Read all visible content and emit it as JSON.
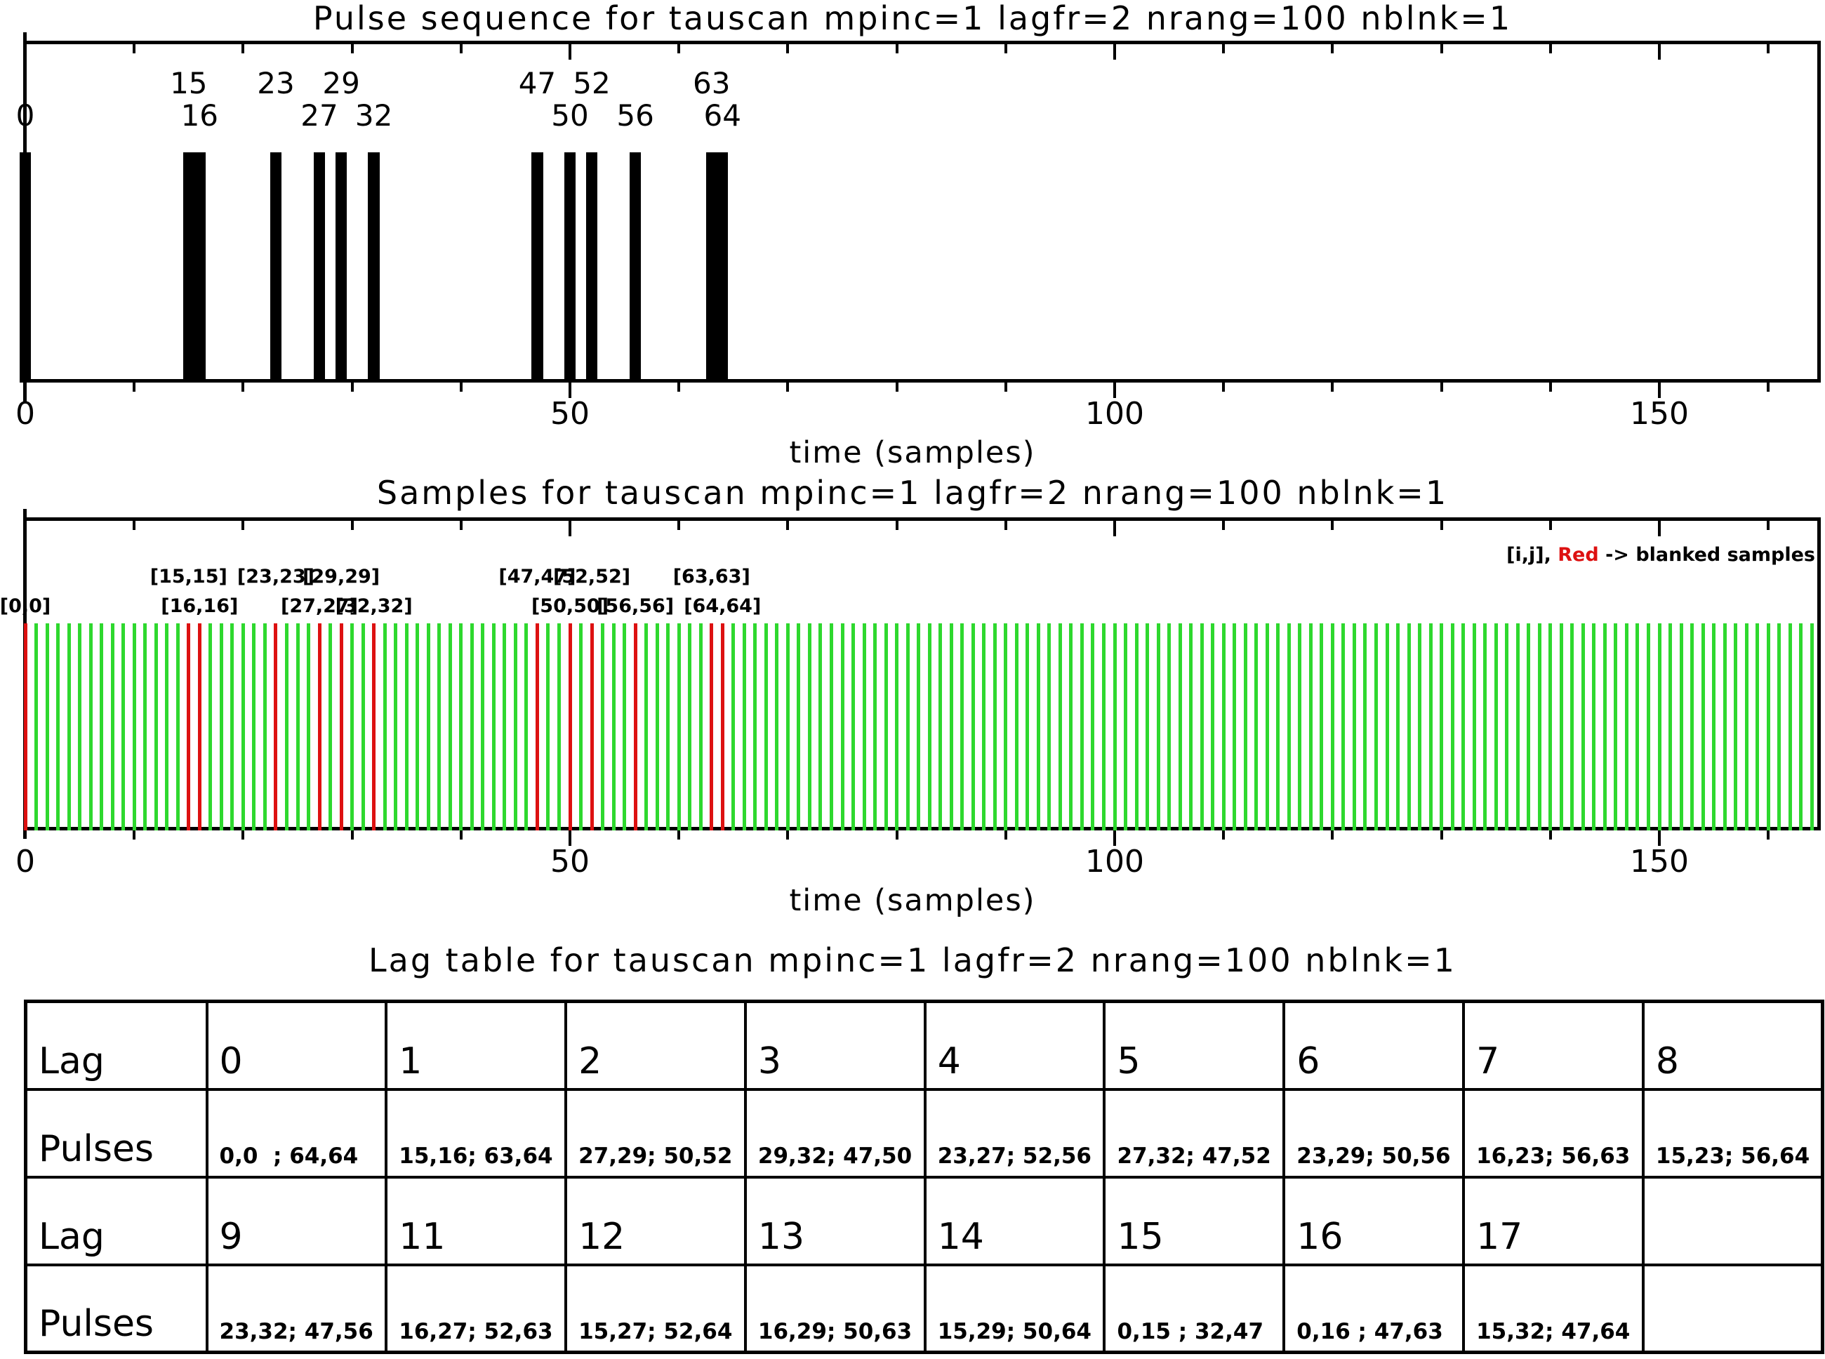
{
  "chart_data": [
    {
      "type": "bar",
      "title": "Pulse sequence for tauscan mpinc=1 lagfr=2 nrang=100 nblnk=1",
      "xlabel": "time (samples)",
      "xticks": [
        0,
        50,
        100,
        150
      ],
      "xlim": [
        0,
        164.9
      ],
      "minor_tick_step": 10,
      "bar_color": "#000000",
      "pulses": [
        0,
        15,
        16,
        23,
        27,
        29,
        32,
        47,
        50,
        52,
        56,
        63,
        64
      ],
      "pulse_labels_top": [
        "15",
        "23",
        "29",
        "47",
        "52",
        "63"
      ],
      "pulse_labels_top_x": [
        15,
        23,
        29,
        47,
        52,
        63
      ],
      "pulse_labels_bottom": [
        "0",
        "16",
        "27",
        "32",
        "50",
        "56",
        "64"
      ],
      "pulse_labels_bottom_x": [
        0,
        16,
        27,
        32,
        50,
        56,
        64
      ]
    },
    {
      "type": "bar",
      "title": "Samples for tauscan mpinc=1 lagfr=2 nrang=100 nblnk=1",
      "xlabel": "time (samples)",
      "xticks": [
        0,
        50,
        100,
        150
      ],
      "xlim": [
        0,
        164.9
      ],
      "minor_tick_step": 10,
      "samples_start": 0,
      "samples_end": 164,
      "sample_color": "#2ed82e",
      "blanked_color": "#dd1111",
      "blanked_samples": [
        0,
        15,
        16,
        23,
        27,
        29,
        32,
        47,
        50,
        52,
        56,
        63,
        64
      ],
      "legend": {
        "prefix": "[i,j], ",
        "red_word": "Red",
        "suffix": " -> blanked samples"
      },
      "annotations_top": [
        "[15,15]",
        "[23,23]",
        "[29,29]",
        "[47,47]",
        "[52,52]",
        "[63,63]"
      ],
      "annotations_top_x": [
        15,
        23,
        29,
        47,
        52,
        63
      ],
      "annotations_bottom": [
        "[0,0]",
        "[16,16]",
        "[27,27]",
        "[32,32]",
        "[50,50]",
        "[56,56]",
        "[64,64]"
      ],
      "annotations_bottom_x": [
        0,
        16,
        27,
        32,
        50,
        56,
        64
      ]
    },
    {
      "type": "table",
      "title": "Lag table for tauscan mpinc=1 lagfr=2 nrang=100 nblnk=1",
      "row_headers": [
        "Lag",
        "Pulses",
        "Lag",
        "Pulses"
      ],
      "rows": [
        [
          "0",
          "1",
          "2",
          "3",
          "4",
          "5",
          "6",
          "7",
          "8"
        ],
        [
          "0,0  ; 64,64",
          "15,16; 63,64",
          "27,29; 50,52",
          "29,32; 47,50",
          "23,27; 52,56",
          "27,32; 47,52",
          "23,29; 50,56",
          "16,23; 56,63",
          "15,23; 56,64"
        ],
        [
          "9",
          "11",
          "12",
          "13",
          "14",
          "15",
          "16",
          "17",
          ""
        ],
        [
          "23,32; 47,56",
          "16,27; 52,63",
          "15,27; 52,64",
          "16,29; 50,63",
          "15,29; 50,64",
          "0,15 ; 32,47",
          "0,16 ; 47,63",
          "15,32; 47,64",
          ""
        ]
      ]
    }
  ]
}
